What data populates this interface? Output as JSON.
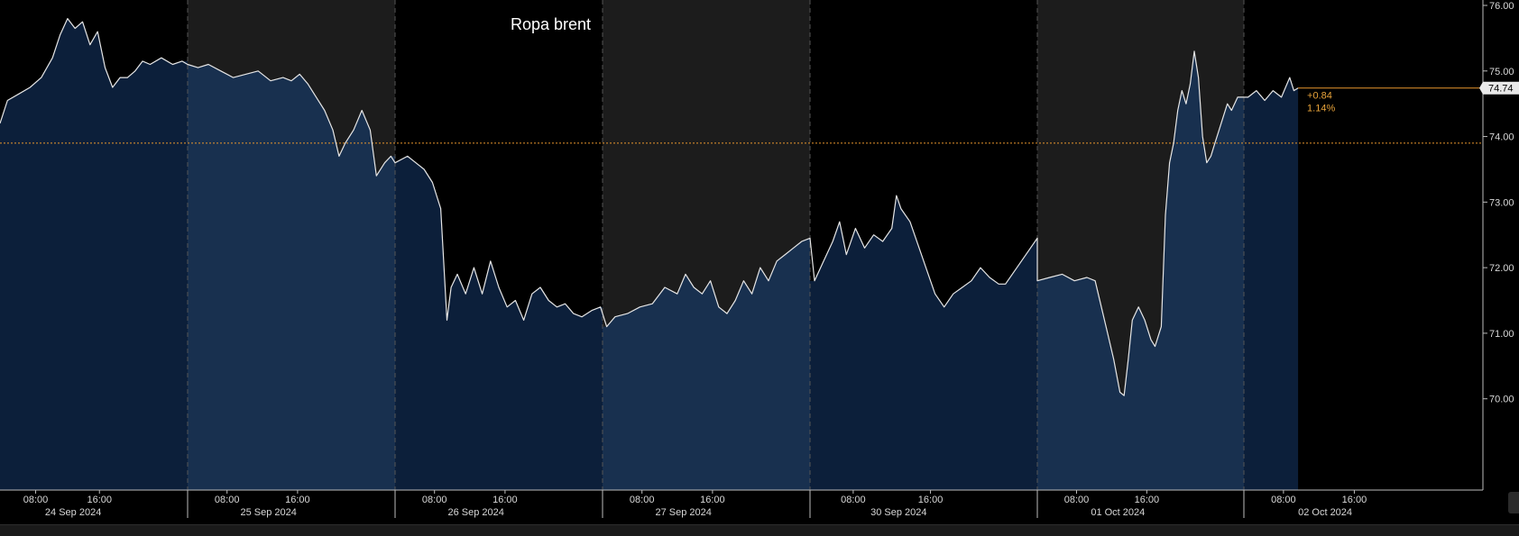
{
  "chart_data": {
    "type": "area",
    "title": "Ropa brent",
    "y_ticks": [
      "76.00",
      "75.00",
      "74.00",
      "73.00",
      "72.00",
      "71.00",
      "70.00"
    ],
    "ylim": [
      69.35,
      76.0
    ],
    "reference_level": 73.9,
    "last_value": "74.74",
    "change_abs": "+0.84",
    "change_pct": "1.14%",
    "days": [
      {
        "date": "24 Sep 2024",
        "times": [
          "08:00",
          "16:00"
        ],
        "shaded": false
      },
      {
        "date": "25 Sep 2024",
        "times": [
          "08:00",
          "16:00"
        ],
        "shaded": true
      },
      {
        "date": "26 Sep 2024",
        "times": [
          "08:00",
          "16:00"
        ],
        "shaded": false
      },
      {
        "date": "27 Sep 2024",
        "times": [
          "08:00",
          "16:00"
        ],
        "shaded": true
      },
      {
        "date": "30 Sep 2024",
        "times": [
          "08:00",
          "16:00"
        ],
        "shaded": false
      },
      {
        "date": "01 Oct 2024",
        "times": [
          "08:00",
          "16:00"
        ],
        "shaded": true
      },
      {
        "date": "02 Oct 2024",
        "times": [
          "08:00",
          "16:00"
        ],
        "shaded": false
      }
    ],
    "last_data_day_fraction": 0.26,
    "series": [
      {
        "points": [
          [
            0,
            0.0,
            74.2
          ],
          [
            0,
            0.04,
            74.55
          ],
          [
            0,
            0.1,
            74.65
          ],
          [
            0,
            0.16,
            74.75
          ],
          [
            0,
            0.22,
            74.9
          ],
          [
            0,
            0.28,
            75.2
          ],
          [
            0,
            0.32,
            75.55
          ],
          [
            0,
            0.36,
            75.8
          ],
          [
            0,
            0.4,
            75.65
          ],
          [
            0,
            0.44,
            75.75
          ],
          [
            0,
            0.48,
            75.4
          ],
          [
            0,
            0.52,
            75.6
          ],
          [
            0,
            0.56,
            75.05
          ],
          [
            0,
            0.6,
            74.75
          ],
          [
            0,
            0.64,
            74.9
          ],
          [
            0,
            0.68,
            74.9
          ],
          [
            0,
            0.72,
            75.0
          ],
          [
            0,
            0.76,
            75.15
          ],
          [
            0,
            0.8,
            75.1
          ],
          [
            0,
            0.86,
            75.2
          ],
          [
            0,
            0.92,
            75.1
          ],
          [
            0,
            0.97,
            75.15
          ],
          [
            1,
            0.0,
            75.1
          ],
          [
            1,
            0.05,
            75.05
          ],
          [
            1,
            0.1,
            75.1
          ],
          [
            1,
            0.16,
            75.0
          ],
          [
            1,
            0.22,
            74.9
          ],
          [
            1,
            0.28,
            74.95
          ],
          [
            1,
            0.34,
            75.0
          ],
          [
            1,
            0.4,
            74.85
          ],
          [
            1,
            0.46,
            74.9
          ],
          [
            1,
            0.5,
            74.85
          ],
          [
            1,
            0.54,
            74.95
          ],
          [
            1,
            0.58,
            74.8
          ],
          [
            1,
            0.62,
            74.6
          ],
          [
            1,
            0.66,
            74.4
          ],
          [
            1,
            0.7,
            74.1
          ],
          [
            1,
            0.73,
            73.7
          ],
          [
            1,
            0.76,
            73.9
          ],
          [
            1,
            0.8,
            74.1
          ],
          [
            1,
            0.84,
            74.4
          ],
          [
            1,
            0.88,
            74.1
          ],
          [
            1,
            0.91,
            73.4
          ],
          [
            1,
            0.95,
            73.6
          ],
          [
            1,
            0.98,
            73.7
          ],
          [
            2,
            0.0,
            73.6
          ],
          [
            2,
            0.06,
            73.7
          ],
          [
            2,
            0.1,
            73.6
          ],
          [
            2,
            0.14,
            73.5
          ],
          [
            2,
            0.18,
            73.3
          ],
          [
            2,
            0.22,
            72.9
          ],
          [
            2,
            0.25,
            71.2
          ],
          [
            2,
            0.27,
            71.7
          ],
          [
            2,
            0.3,
            71.9
          ],
          [
            2,
            0.34,
            71.6
          ],
          [
            2,
            0.38,
            72.0
          ],
          [
            2,
            0.42,
            71.6
          ],
          [
            2,
            0.46,
            72.1
          ],
          [
            2,
            0.5,
            71.7
          ],
          [
            2,
            0.54,
            71.4
          ],
          [
            2,
            0.58,
            71.5
          ],
          [
            2,
            0.62,
            71.2
          ],
          [
            2,
            0.66,
            71.6
          ],
          [
            2,
            0.7,
            71.7
          ],
          [
            2,
            0.74,
            71.5
          ],
          [
            2,
            0.78,
            71.4
          ],
          [
            2,
            0.82,
            71.45
          ],
          [
            2,
            0.86,
            71.3
          ],
          [
            2,
            0.9,
            71.25
          ],
          [
            2,
            0.95,
            71.35
          ],
          [
            2,
            0.99,
            71.4
          ],
          [
            3,
            0.02,
            71.1
          ],
          [
            3,
            0.06,
            71.25
          ],
          [
            3,
            0.12,
            71.3
          ],
          [
            3,
            0.18,
            71.4
          ],
          [
            3,
            0.24,
            71.45
          ],
          [
            3,
            0.3,
            71.7
          ],
          [
            3,
            0.36,
            71.6
          ],
          [
            3,
            0.4,
            71.9
          ],
          [
            3,
            0.44,
            71.7
          ],
          [
            3,
            0.48,
            71.6
          ],
          [
            3,
            0.52,
            71.8
          ],
          [
            3,
            0.56,
            71.4
          ],
          [
            3,
            0.6,
            71.3
          ],
          [
            3,
            0.64,
            71.5
          ],
          [
            3,
            0.68,
            71.8
          ],
          [
            3,
            0.72,
            71.6
          ],
          [
            3,
            0.76,
            72.0
          ],
          [
            3,
            0.8,
            71.8
          ],
          [
            3,
            0.84,
            72.1
          ],
          [
            3,
            0.88,
            72.2
          ],
          [
            3,
            0.92,
            72.3
          ],
          [
            3,
            0.96,
            72.4
          ],
          [
            3,
            1.0,
            72.45
          ],
          [
            4,
            0.02,
            71.8
          ],
          [
            4,
            0.06,
            72.1
          ],
          [
            4,
            0.1,
            72.4
          ],
          [
            4,
            0.13,
            72.7
          ],
          [
            4,
            0.16,
            72.2
          ],
          [
            4,
            0.2,
            72.6
          ],
          [
            4,
            0.24,
            72.3
          ],
          [
            4,
            0.28,
            72.5
          ],
          [
            4,
            0.32,
            72.4
          ],
          [
            4,
            0.36,
            72.6
          ],
          [
            4,
            0.38,
            73.1
          ],
          [
            4,
            0.4,
            72.9
          ],
          [
            4,
            0.44,
            72.7
          ],
          [
            4,
            0.48,
            72.3
          ],
          [
            4,
            0.51,
            72.0
          ],
          [
            4,
            0.55,
            71.6
          ],
          [
            4,
            0.59,
            71.4
          ],
          [
            4,
            0.63,
            71.6
          ],
          [
            4,
            0.67,
            71.7
          ],
          [
            4,
            0.71,
            71.8
          ],
          [
            4,
            0.75,
            72.0
          ],
          [
            4,
            0.79,
            71.85
          ],
          [
            4,
            0.83,
            71.75
          ],
          [
            4,
            0.86,
            71.75
          ],
          [
            4,
            0.93,
            72.1
          ],
          [
            4,
            1.0,
            72.45
          ],
          [
            5,
            0.0,
            71.8
          ],
          [
            5,
            0.06,
            71.85
          ],
          [
            5,
            0.12,
            71.9
          ],
          [
            5,
            0.18,
            71.8
          ],
          [
            5,
            0.24,
            71.85
          ],
          [
            5,
            0.28,
            71.8
          ],
          [
            5,
            0.31,
            71.4
          ],
          [
            5,
            0.34,
            71.0
          ],
          [
            5,
            0.37,
            70.6
          ],
          [
            5,
            0.4,
            70.1
          ],
          [
            5,
            0.42,
            70.05
          ],
          [
            5,
            0.44,
            70.6
          ],
          [
            5,
            0.46,
            71.2
          ],
          [
            5,
            0.49,
            71.4
          ],
          [
            5,
            0.52,
            71.2
          ],
          [
            5,
            0.55,
            70.9
          ],
          [
            5,
            0.57,
            70.8
          ],
          [
            5,
            0.6,
            71.1
          ],
          [
            5,
            0.62,
            72.8
          ],
          [
            5,
            0.64,
            73.6
          ],
          [
            5,
            0.66,
            73.9
          ],
          [
            5,
            0.68,
            74.4
          ],
          [
            5,
            0.7,
            74.7
          ],
          [
            5,
            0.72,
            74.5
          ],
          [
            5,
            0.74,
            74.8
          ],
          [
            5,
            0.76,
            75.3
          ],
          [
            5,
            0.78,
            74.9
          ],
          [
            5,
            0.8,
            74.0
          ],
          [
            5,
            0.82,
            73.6
          ],
          [
            5,
            0.84,
            73.7
          ],
          [
            5,
            0.86,
            73.9
          ],
          [
            5,
            0.88,
            74.1
          ],
          [
            5,
            0.9,
            74.3
          ],
          [
            5,
            0.92,
            74.5
          ],
          [
            5,
            0.94,
            74.4
          ],
          [
            5,
            0.97,
            74.6
          ],
          [
            6,
            0.02,
            74.6
          ],
          [
            6,
            0.06,
            74.7
          ],
          [
            6,
            0.1,
            74.55
          ],
          [
            6,
            0.14,
            74.7
          ],
          [
            6,
            0.18,
            74.6
          ],
          [
            6,
            0.22,
            74.9
          ],
          [
            6,
            0.24,
            74.7
          ],
          [
            6,
            0.26,
            74.74
          ]
        ]
      }
    ]
  }
}
